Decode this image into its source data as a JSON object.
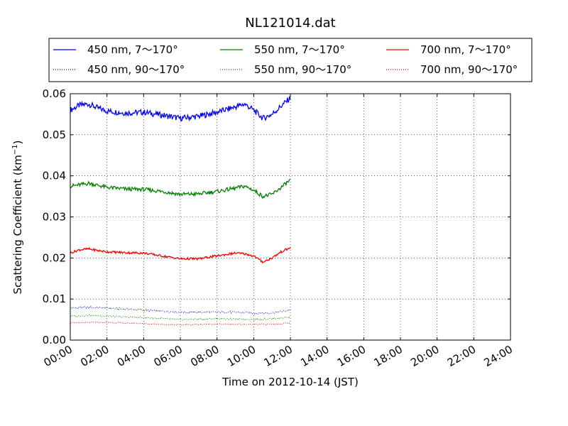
{
  "chart_data": {
    "type": "line",
    "title": "NL121014.dat",
    "xlabel": "Time on 2012-10-14 (JST)",
    "ylabel_main": "Scattering Coefficient (km",
    "ylabel_sup": "−1",
    "ylabel_tail": ")",
    "xlim": [
      0,
      24
    ],
    "ylim": [
      0,
      0.06
    ],
    "grid": true,
    "legend_placement": "top, above plot",
    "x_ticks": [
      {
        "value": 0,
        "label": "00:00"
      },
      {
        "value": 2,
        "label": "02:00"
      },
      {
        "value": 4,
        "label": "04:00"
      },
      {
        "value": 6,
        "label": "06:00"
      },
      {
        "value": 8,
        "label": "08:00"
      },
      {
        "value": 10,
        "label": "10:00"
      },
      {
        "value": 12,
        "label": "12:00"
      },
      {
        "value": 14,
        "label": "14:00"
      },
      {
        "value": 16,
        "label": "16:00"
      },
      {
        "value": 18,
        "label": "18:00"
      },
      {
        "value": 20,
        "label": "20:00"
      },
      {
        "value": 22,
        "label": "22:00"
      },
      {
        "value": 24,
        "label": "24:00"
      }
    ],
    "y_ticks": [
      {
        "value": 0,
        "label": "0.00"
      },
      {
        "value": 0.01,
        "label": "0.01"
      },
      {
        "value": 0.02,
        "label": "0.02"
      },
      {
        "value": 0.03,
        "label": "0.03"
      },
      {
        "value": 0.04,
        "label": "0.04"
      },
      {
        "value": 0.05,
        "label": "0.05"
      },
      {
        "value": 0.06,
        "label": "0.06"
      }
    ],
    "series": [
      {
        "name": "450 nm, 7～170°",
        "color": "#0000ff",
        "style": "solid",
        "x": [
          0,
          0.5,
          1,
          1.5,
          2,
          3,
          4,
          5,
          6,
          7,
          8,
          9,
          9.5,
          10,
          10.5,
          11,
          11.5,
          12
        ],
        "y": [
          0.056,
          0.0572,
          0.0575,
          0.0565,
          0.0558,
          0.0553,
          0.0555,
          0.0548,
          0.054,
          0.0545,
          0.0555,
          0.0568,
          0.0575,
          0.056,
          0.054,
          0.055,
          0.057,
          0.059
        ]
      },
      {
        "name": "450 nm, 90～170°",
        "color": "#0000ff",
        "style": "dotted",
        "x": [
          0,
          1,
          2,
          4,
          6,
          8,
          9,
          10,
          11,
          12
        ],
        "y": [
          0.0078,
          0.008,
          0.0078,
          0.0073,
          0.0068,
          0.0068,
          0.0068,
          0.0066,
          0.0066,
          0.0073
        ]
      },
      {
        "name": "550 nm, 7～170°",
        "color": "#008000",
        "style": "solid",
        "x": [
          0,
          0.5,
          1,
          1.5,
          2,
          3,
          4,
          5,
          6,
          7,
          8,
          9,
          9.5,
          10,
          10.5,
          11,
          11.5,
          12
        ],
        "y": [
          0.0375,
          0.0378,
          0.0382,
          0.0377,
          0.0372,
          0.0368,
          0.0367,
          0.0362,
          0.0355,
          0.0356,
          0.0362,
          0.037,
          0.0375,
          0.0365,
          0.035,
          0.0355,
          0.0372,
          0.039
        ]
      },
      {
        "name": "550 nm, 90～170°",
        "color": "#008000",
        "style": "dotted",
        "x": [
          0,
          1,
          2,
          4,
          6,
          8,
          10,
          11,
          12
        ],
        "y": [
          0.0058,
          0.006,
          0.0058,
          0.0055,
          0.005,
          0.0052,
          0.005,
          0.0052,
          0.0056
        ]
      },
      {
        "name": "700 nm, 7～170°",
        "color": "#ff0000",
        "style": "solid",
        "x": [
          0,
          0.5,
          1,
          1.5,
          2,
          3,
          4,
          5,
          6,
          7,
          8,
          9,
          9.5,
          10,
          10.5,
          11,
          11.5,
          12
        ],
        "y": [
          0.0212,
          0.022,
          0.0222,
          0.0218,
          0.0215,
          0.0213,
          0.0212,
          0.0205,
          0.0198,
          0.0198,
          0.0205,
          0.0212,
          0.021,
          0.0205,
          0.019,
          0.02,
          0.0215,
          0.0225
        ]
      },
      {
        "name": "700 nm, 90～170°",
        "color": "#ff0000",
        "style": "dotted",
        "x": [
          0,
          1,
          2,
          4,
          6,
          8,
          10,
          11,
          12
        ],
        "y": [
          0.0042,
          0.0043,
          0.0043,
          0.004,
          0.0037,
          0.0039,
          0.0038,
          0.0039,
          0.0041
        ]
      }
    ]
  }
}
